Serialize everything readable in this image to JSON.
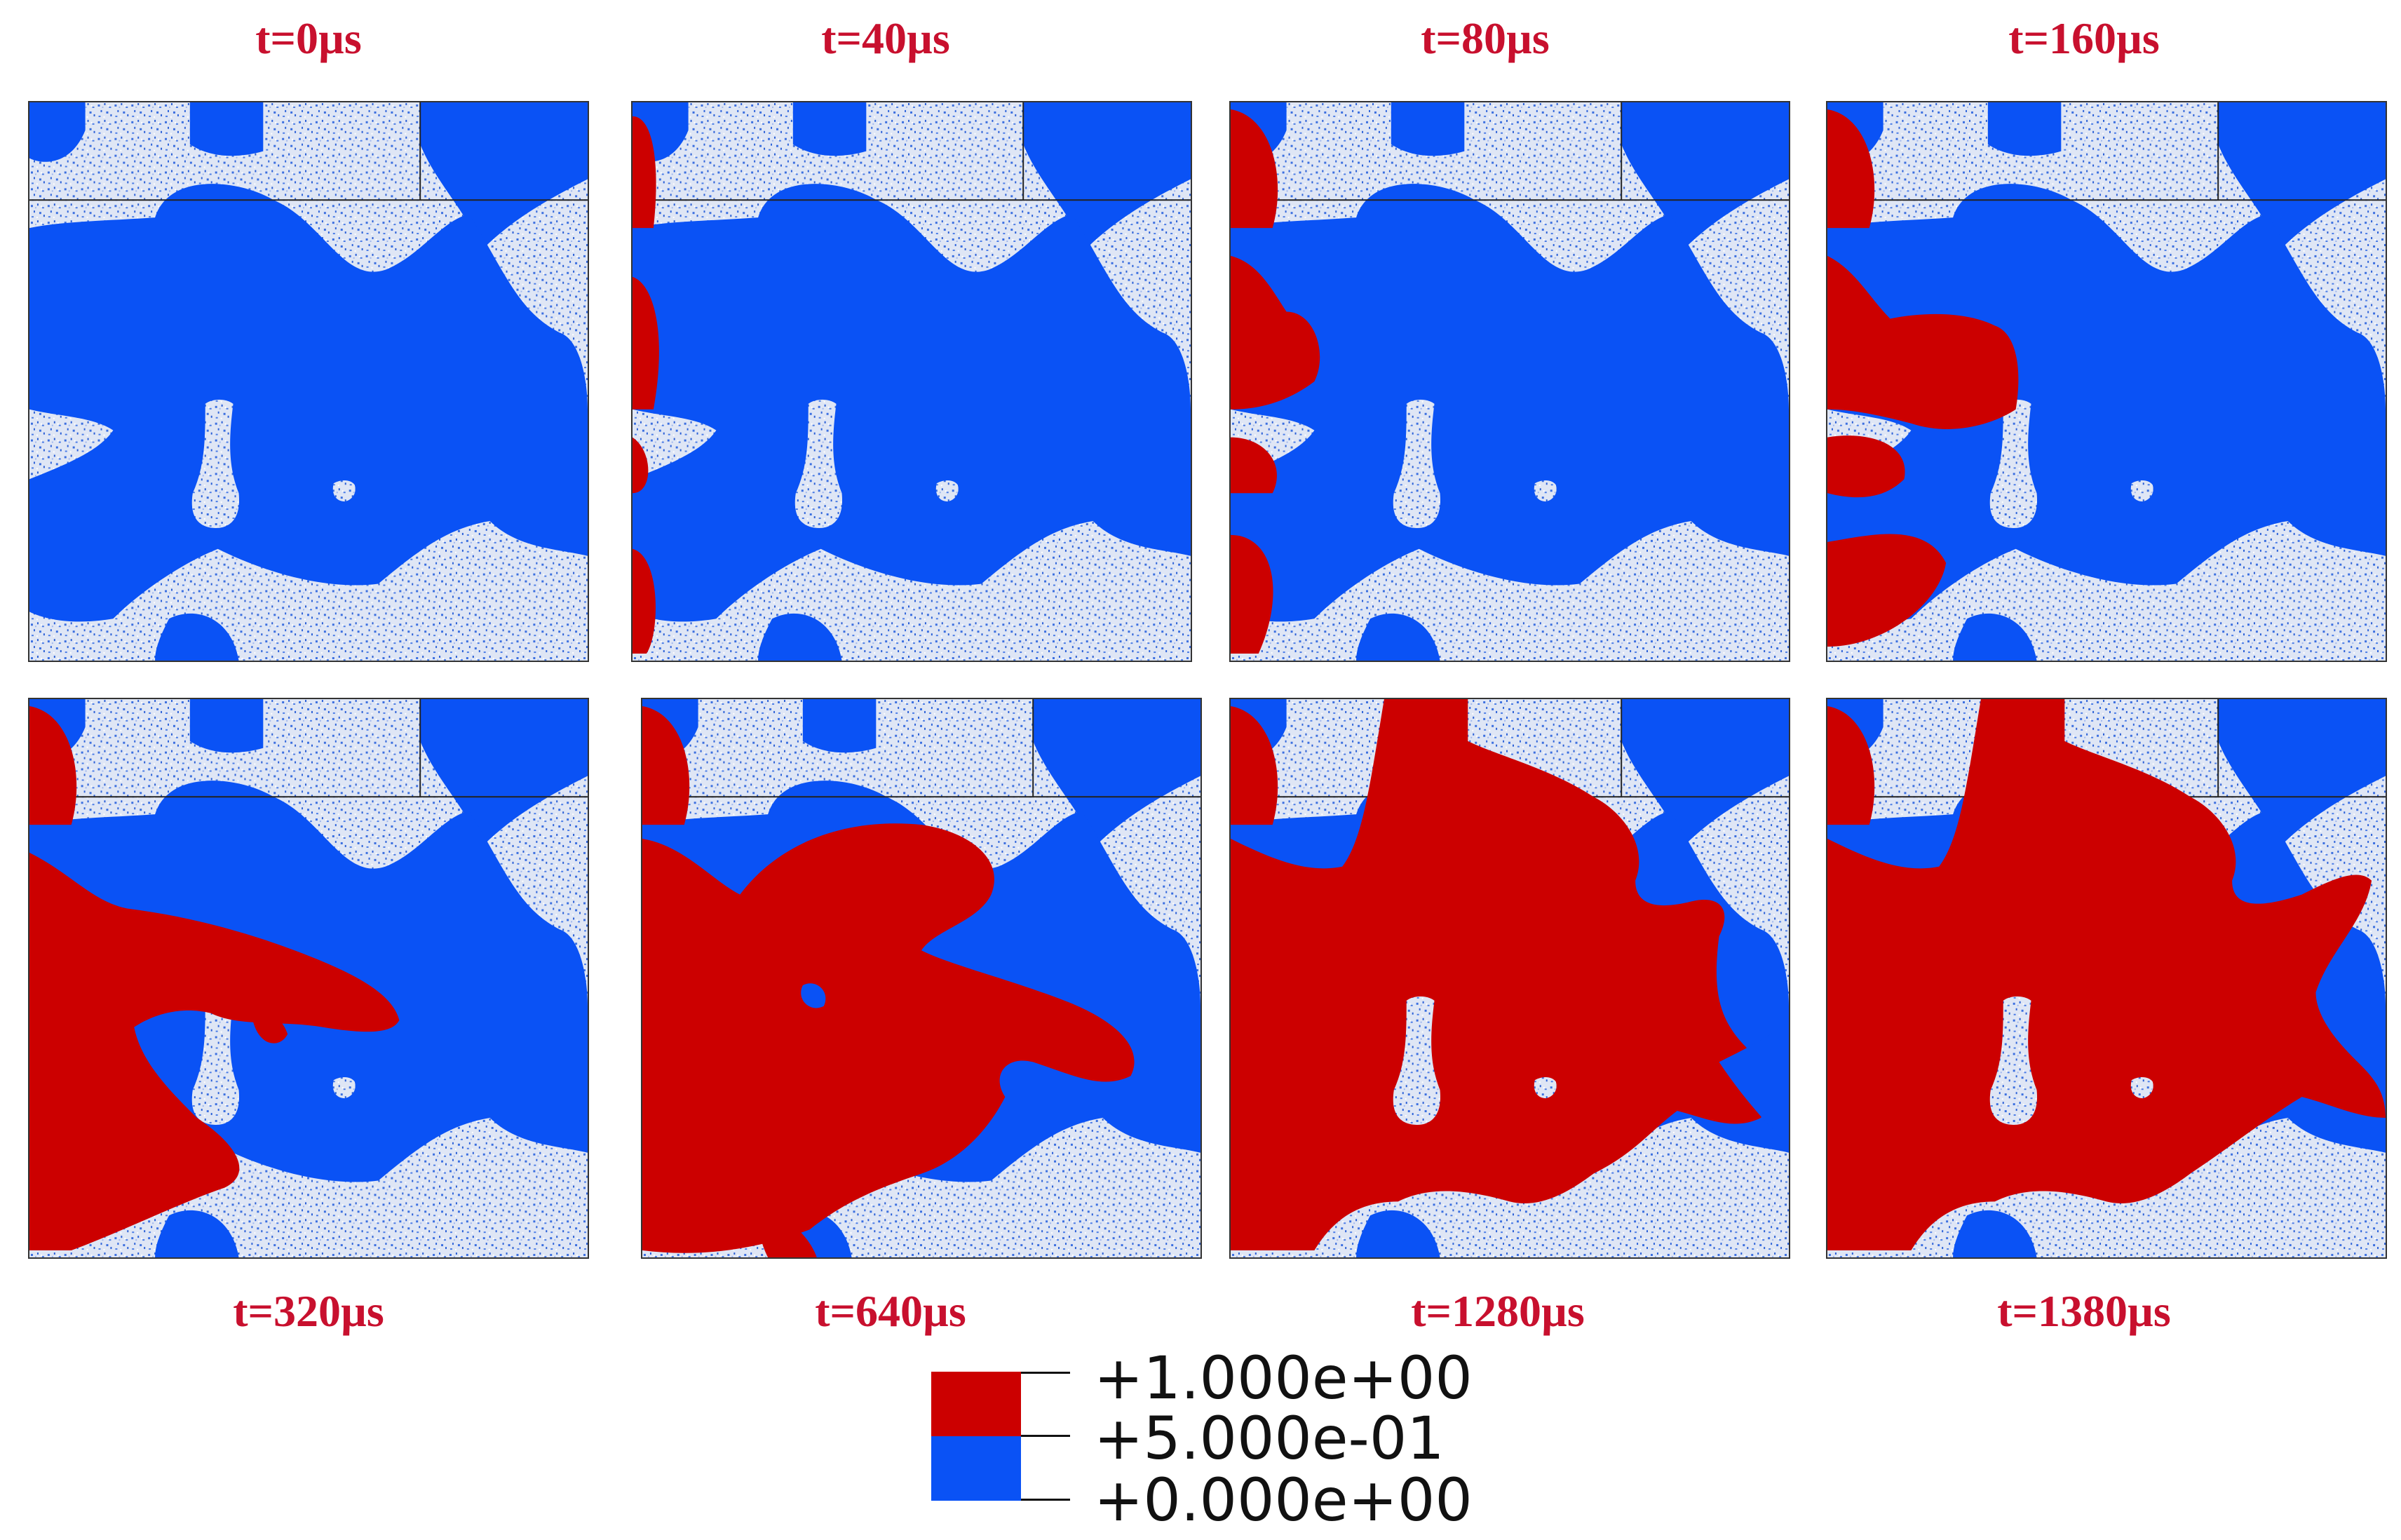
{
  "panels": [
    {
      "time": "t=0µs"
    },
    {
      "time": "t=40µs"
    },
    {
      "time": "t=80µs"
    },
    {
      "time": "t=160µs"
    },
    {
      "time": "t=320µs"
    },
    {
      "time": "t=640µs"
    },
    {
      "time": "t=1280µs"
    },
    {
      "time": "t=1380µs"
    }
  ],
  "legend": {
    "labels": [
      "+1.000e+00",
      "+5.000e-01",
      "+0.000e+00"
    ],
    "colors": {
      "high": "#cc0000",
      "low": "#0a52f5",
      "solid": "#dfe6f5"
    }
  },
  "colors": {
    "label": "#c8102e"
  }
}
